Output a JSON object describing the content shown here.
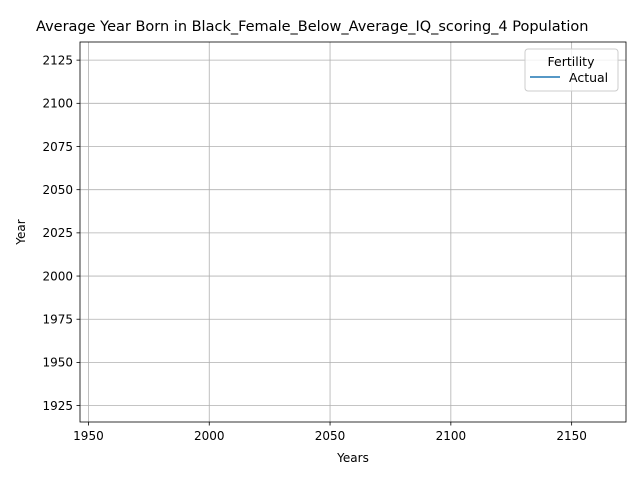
{
  "chart_data": {
    "type": "line",
    "title": "Average Year Born in Black_Female_Below_Average_IQ_scoring_4 Population",
    "xlabel": "Years",
    "ylabel": "Year",
    "xlim": [
      1946.5,
      2172.5
    ],
    "ylim": [
      1915.5,
      2135.5
    ],
    "x_ticks": [
      1950,
      2000,
      2050,
      2100,
      2150
    ],
    "x_tick_labels": [
      "1950",
      "2000",
      "2050",
      "2100",
      "2150"
    ],
    "y_ticks": [
      1925,
      1950,
      1975,
      2000,
      2025,
      2050,
      2075,
      2100,
      2125
    ],
    "y_tick_labels": [
      "1925",
      "1950",
      "1975",
      "2000",
      "2025",
      "2050",
      "2075",
      "2100",
      "2125"
    ],
    "grid": true,
    "legend": {
      "title": "Fertility",
      "placement": "top-right",
      "entries": [
        "Actual"
      ]
    },
    "series": [
      {
        "name": "Actual",
        "color": "#1f77b4",
        "x": [],
        "y": []
      }
    ]
  }
}
